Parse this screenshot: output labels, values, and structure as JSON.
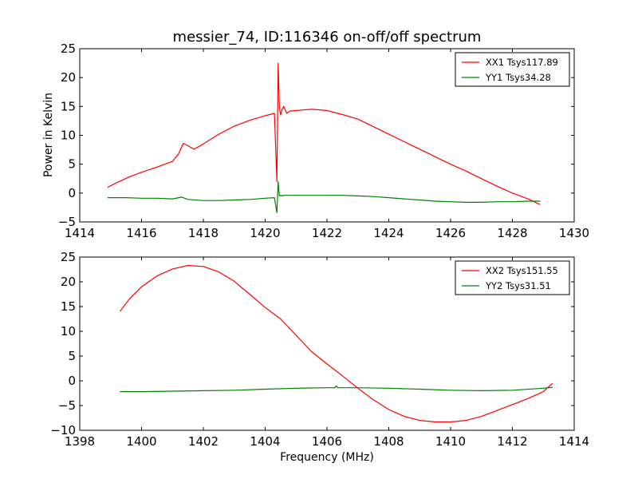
{
  "title": "messier_74, ID:116346 on-off/off spectrum",
  "ylabel": "Power in Kelvin",
  "xlabel": "Frequency (MHz)",
  "colors": {
    "red": "#ff0000",
    "green": "#008000",
    "axis": "#000000"
  },
  "chart_data": [
    {
      "type": "line",
      "xlim": [
        1414,
        1430
      ],
      "ylim": [
        -5,
        25
      ],
      "xticks": [
        1414,
        1416,
        1418,
        1420,
        1422,
        1424,
        1426,
        1428,
        1430
      ],
      "yticks": [
        -5,
        0,
        5,
        10,
        15,
        20,
        25
      ],
      "legend_position": "top-right",
      "grid": false,
      "series": [
        {
          "name": "XX1 Tsys117.89",
          "color": "#ff0000",
          "x": [
            1414.9,
            1415.2,
            1415.6,
            1416.0,
            1416.5,
            1417.0,
            1417.2,
            1417.35,
            1417.5,
            1417.7,
            1418.0,
            1418.5,
            1419.0,
            1419.5,
            1420.0,
            1420.3,
            1420.38,
            1420.42,
            1420.46,
            1420.5,
            1420.55,
            1420.6,
            1420.7,
            1420.8,
            1421.0,
            1421.5,
            1422.0,
            1422.5,
            1423.0,
            1423.5,
            1424.0,
            1424.5,
            1425.0,
            1425.5,
            1426.0,
            1426.5,
            1427.0,
            1427.5,
            1428.0,
            1428.5,
            1428.9
          ],
          "y": [
            1.0,
            1.8,
            2.8,
            3.6,
            4.5,
            5.5,
            6.8,
            8.6,
            8.2,
            7.6,
            8.5,
            10.2,
            11.6,
            12.6,
            13.4,
            13.8,
            2.0,
            22.5,
            15.0,
            13.5,
            14.5,
            15.0,
            13.8,
            14.2,
            14.3,
            14.5,
            14.3,
            13.6,
            12.8,
            11.5,
            10.2,
            8.9,
            7.6,
            6.3,
            5.0,
            3.8,
            2.5,
            1.2,
            0.0,
            -1.0,
            -2.0
          ]
        },
        {
          "name": "YY1 Tsys34.28",
          "color": "#008000",
          "x": [
            1414.9,
            1415.5,
            1416.0,
            1416.5,
            1417.0,
            1417.3,
            1417.5,
            1418.0,
            1418.5,
            1419.0,
            1419.5,
            1420.0,
            1420.3,
            1420.38,
            1420.42,
            1420.46,
            1420.5,
            1420.55,
            1420.6,
            1420.8,
            1421.0,
            1421.5,
            1422.0,
            1422.5,
            1423.0,
            1423.5,
            1424.0,
            1424.5,
            1425.0,
            1425.5,
            1426.0,
            1426.5,
            1427.0,
            1427.5,
            1428.0,
            1428.5,
            1428.9
          ],
          "y": [
            -0.8,
            -0.8,
            -0.9,
            -0.9,
            -1.0,
            -0.7,
            -1.1,
            -1.3,
            -1.3,
            -1.2,
            -1.1,
            -0.9,
            -0.8,
            -3.4,
            2.0,
            -0.5,
            -0.4,
            -0.5,
            -0.4,
            -0.4,
            -0.4,
            -0.4,
            -0.4,
            -0.4,
            -0.5,
            -0.6,
            -0.8,
            -1.0,
            -1.2,
            -1.4,
            -1.5,
            -1.6,
            -1.6,
            -1.5,
            -1.5,
            -1.4,
            -1.4
          ]
        }
      ]
    },
    {
      "type": "line",
      "xlim": [
        1398,
        1414
      ],
      "ylim": [
        -10,
        25
      ],
      "xticks": [
        1398,
        1400,
        1402,
        1404,
        1406,
        1408,
        1410,
        1412,
        1414
      ],
      "yticks": [
        -10,
        -5,
        0,
        5,
        10,
        15,
        20,
        25
      ],
      "legend_position": "top-right",
      "grid": false,
      "series": [
        {
          "name": "XX2 Tsys151.55",
          "color": "#ff0000",
          "x": [
            1399.3,
            1399.6,
            1400.0,
            1400.5,
            1401.0,
            1401.5,
            1402.0,
            1402.5,
            1403.0,
            1403.5,
            1404.0,
            1404.5,
            1405.0,
            1405.5,
            1406.0,
            1406.5,
            1407.0,
            1407.5,
            1408.0,
            1408.5,
            1409.0,
            1409.5,
            1410.0,
            1410.5,
            1411.0,
            1411.5,
            1412.0,
            1412.5,
            1413.0,
            1413.3
          ],
          "y": [
            14.0,
            16.5,
            19.0,
            21.2,
            22.6,
            23.3,
            23.1,
            22.0,
            20.1,
            17.5,
            14.8,
            12.5,
            9.2,
            5.9,
            3.4,
            1.0,
            -1.5,
            -3.8,
            -5.8,
            -7.2,
            -8.0,
            -8.3,
            -8.3,
            -8.0,
            -7.2,
            -6.0,
            -4.8,
            -3.6,
            -2.2,
            -0.5
          ]
        },
        {
          "name": "YY2 Tsys31.51",
          "color": "#008000",
          "x": [
            1399.3,
            1400.0,
            1401.0,
            1402.0,
            1403.0,
            1404.0,
            1405.0,
            1406.0,
            1406.25,
            1406.3,
            1406.35,
            1407.0,
            1408.0,
            1409.0,
            1410.0,
            1411.0,
            1412.0,
            1413.0,
            1413.3
          ],
          "y": [
            -2.2,
            -2.2,
            -2.1,
            -2.0,
            -1.9,
            -1.7,
            -1.5,
            -1.4,
            -1.4,
            -1.0,
            -1.4,
            -1.4,
            -1.5,
            -1.7,
            -1.9,
            -2.0,
            -1.9,
            -1.5,
            -1.3
          ]
        }
      ]
    }
  ]
}
